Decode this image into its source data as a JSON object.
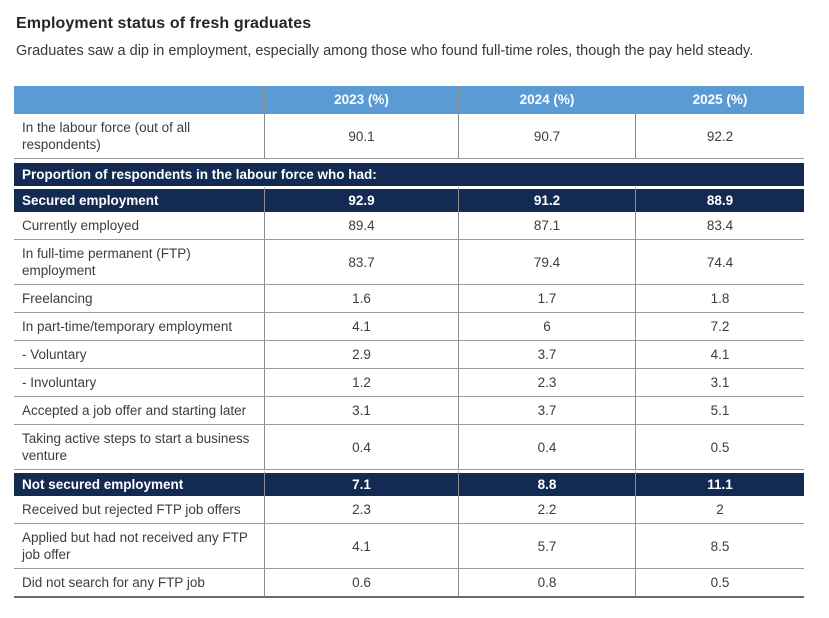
{
  "header": {
    "title": "Employment status of fresh graduates",
    "subtitle": "Graduates saw a dip in employment, especially among those who found full-time roles, though the pay held steady."
  },
  "colors": {
    "column_header_bg": "#5b9bd5",
    "section_header_bg": "#132b52",
    "header_text": "#ffffff",
    "body_text": "#3d3d3d",
    "row_border": "#9a9a9a",
    "column_border": "#8c8c8c",
    "bottom_border": "#646c77"
  },
  "chart_data": {
    "type": "table",
    "title": "Employment status of fresh graduates",
    "subtitle": "Graduates saw a dip in employment, especially among those who found full-time roles, though the pay held steady.",
    "columns": [
      "",
      "2023 (%)",
      "2024 (%)",
      "2025 (%)"
    ],
    "rows": [
      {
        "style": "data",
        "label": "In the labour force (out of all respondents)",
        "values": [
          "90.1",
          "90.7",
          "92.2"
        ]
      },
      {
        "style": "section",
        "label": "Proportion of respondents in the labour force who had:",
        "values": []
      },
      {
        "style": "highlight",
        "label": "Secured employment",
        "values": [
          "92.9",
          "91.2",
          "88.9"
        ]
      },
      {
        "style": "data",
        "label": "Currently employed",
        "values": [
          "89.4",
          "87.1",
          "83.4"
        ]
      },
      {
        "style": "data",
        "label": "In full-time permanent (FTP) employment",
        "values": [
          "83.7",
          "79.4",
          "74.4"
        ]
      },
      {
        "style": "data",
        "label": "Freelancing",
        "values": [
          "1.6",
          "1.7",
          "1.8"
        ]
      },
      {
        "style": "data",
        "label": "In part-time/temporary employment",
        "values": [
          "4.1",
          "6",
          "7.2"
        ]
      },
      {
        "style": "data",
        "label": "- Voluntary",
        "values": [
          "2.9",
          "3.7",
          "4.1"
        ]
      },
      {
        "style": "data",
        "label": "- Involuntary",
        "values": [
          "1.2",
          "2.3",
          "3.1"
        ]
      },
      {
        "style": "data",
        "label": "Accepted a job offer and starting later",
        "values": [
          "3.1",
          "3.7",
          "5.1"
        ]
      },
      {
        "style": "data",
        "label": "Taking active steps to start a business venture",
        "values": [
          "0.4",
          "0.4",
          "0.5"
        ]
      },
      {
        "style": "highlight",
        "label": "Not secured employment",
        "values": [
          "7.1",
          "8.8",
          "11.1"
        ]
      },
      {
        "style": "data",
        "label": "Received but rejected FTP job offers",
        "values": [
          "2.3",
          "2.2",
          "2"
        ]
      },
      {
        "style": "data",
        "label": "Applied but had not received any FTP job offer",
        "values": [
          "4.1",
          "5.7",
          "8.5"
        ]
      },
      {
        "style": "data",
        "label": "Did not search for any FTP job",
        "values": [
          "0.6",
          "0.8",
          "0.5"
        ]
      }
    ]
  }
}
